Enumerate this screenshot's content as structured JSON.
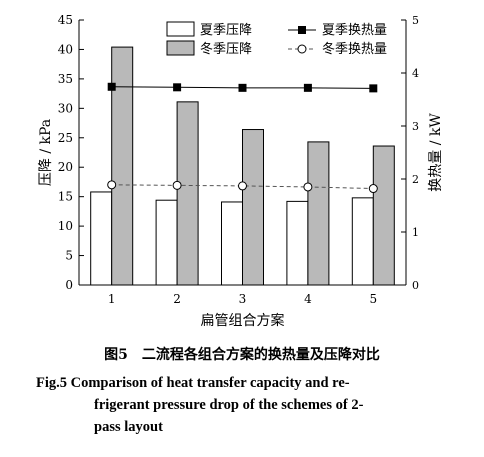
{
  "chart_data": {
    "type": "bar",
    "categories": [
      "1",
      "2",
      "3",
      "4",
      "5"
    ],
    "xlabel": "扁管组合方案",
    "ylabel": "压降 / kPa",
    "y2label": "换热量 / kW",
    "ylim": [
      0,
      45
    ],
    "y2lim": [
      0,
      5
    ],
    "yticks": [
      "0",
      "5",
      "10",
      "15",
      "20",
      "25",
      "30",
      "35",
      "40",
      "45"
    ],
    "y2ticks": [
      "0",
      "1",
      "2",
      "3",
      "4",
      "5"
    ],
    "legend_position": "top",
    "bar_series": [
      {
        "name": "夏季压降",
        "values": [
          15.8,
          14.4,
          14.1,
          14.2,
          14.8
        ],
        "color": "#ffffff"
      },
      {
        "name": "冬季压降",
        "values": [
          40.4,
          31.1,
          26.4,
          24.3,
          23.6
        ],
        "color": "#b9b9b9"
      }
    ],
    "line_series": [
      {
        "name": "夏季换热量",
        "values": [
          3.74,
          3.73,
          3.72,
          3.72,
          3.71
        ],
        "marker": "filled-square",
        "style": "solid"
      },
      {
        "name": "冬季换热量",
        "values": [
          1.89,
          1.88,
          1.87,
          1.85,
          1.82
        ],
        "marker": "open-circle",
        "style": "dashed"
      }
    ]
  },
  "caption": {
    "zh": "图5　二流程各组合方案的换热量及压降对比",
    "en_lines": [
      "Fig.5   Comparison of heat transfer capacity and re-",
      "frigerant pressure drop of the schemes of 2-",
      "pass layout"
    ]
  }
}
